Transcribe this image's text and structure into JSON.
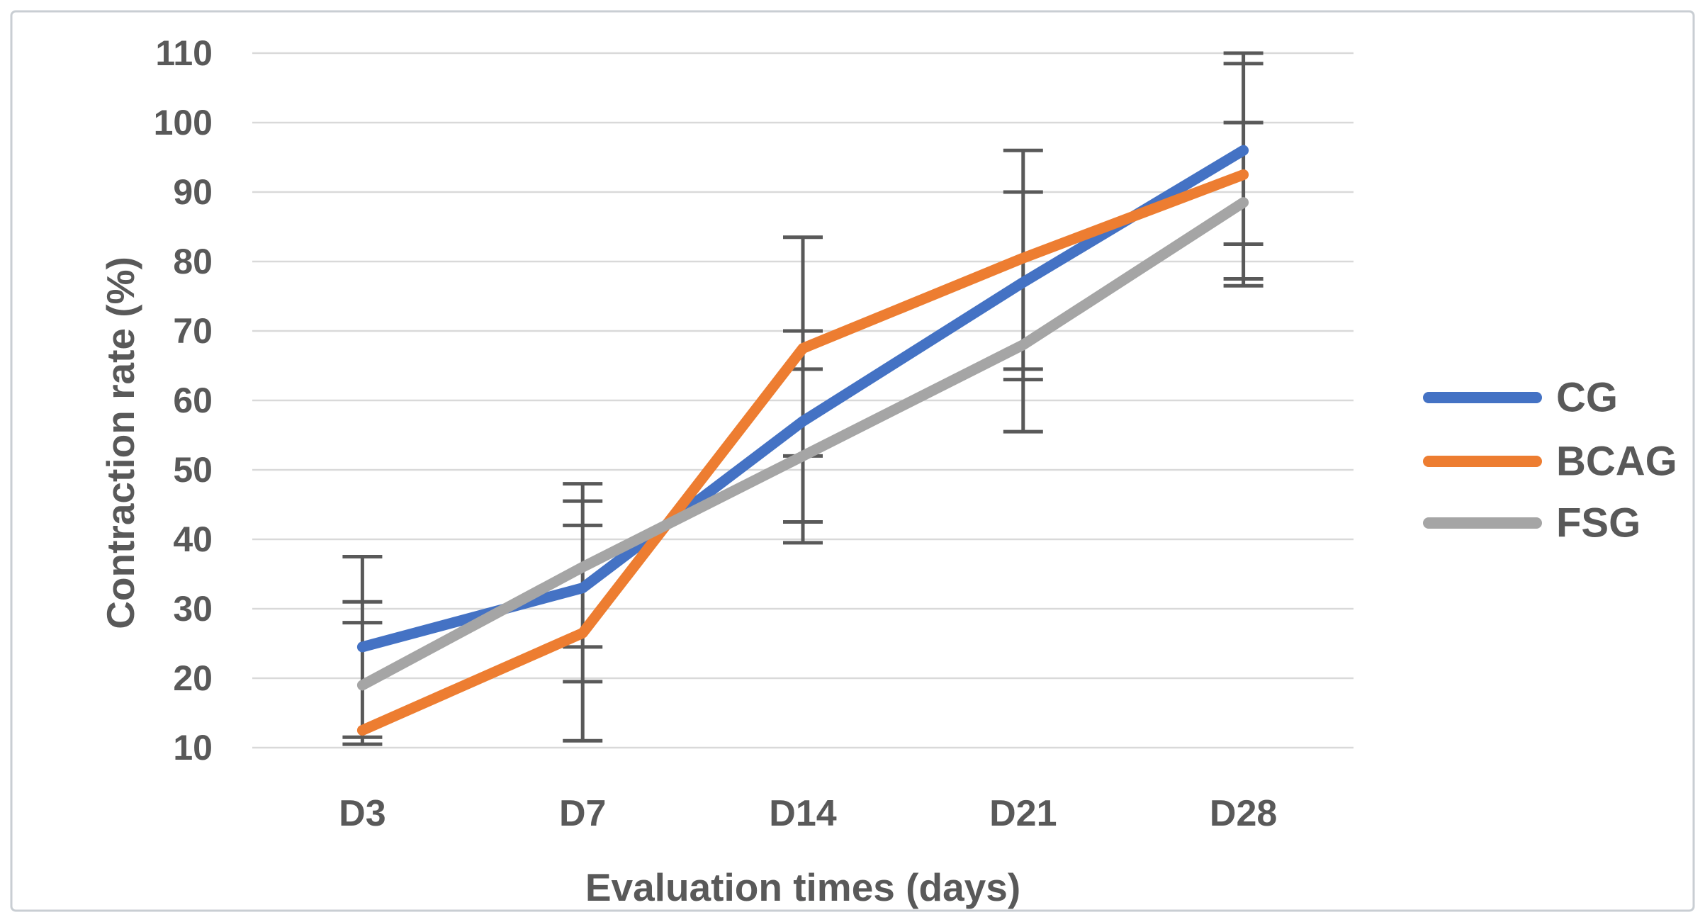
{
  "chart_data": {
    "type": "line",
    "title": "",
    "xlabel": "Evaluation times (days)",
    "ylabel": "Contraction rate (%)",
    "categories": [
      "D3",
      "D7",
      "D14",
      "D21",
      "D28"
    ],
    "y_ticks": [
      110,
      100,
      90,
      80,
      70,
      60,
      50,
      40,
      30,
      20,
      10
    ],
    "ylim": [
      10,
      110
    ],
    "grid": "horizontal",
    "legend_position": "right",
    "series": [
      {
        "name": "CG",
        "color": "#4472C4",
        "values": [
          24.5,
          33,
          57,
          77,
          96
        ]
      },
      {
        "name": "BCAG",
        "color": "#ED7D31",
        "values": [
          12.5,
          26.5,
          67.5,
          80.5,
          92.5
        ]
      },
      {
        "name": "FSG",
        "color": "#A5A5A5",
        "values": [
          19,
          36,
          52,
          68,
          88.5
        ]
      }
    ],
    "error_bars": {
      "color": "#595959",
      "points": [
        {
          "category": "D3",
          "low": 10.5,
          "high": 37.5,
          "caps": [
            37.5,
            31,
            28,
            11.5,
            10.5
          ]
        },
        {
          "category": "D7",
          "low": 11,
          "high": 48,
          "caps": [
            48,
            45.5,
            42,
            24.5,
            19.5,
            11
          ]
        },
        {
          "category": "D14",
          "low": 39.5,
          "high": 83.5,
          "caps": [
            83.5,
            70,
            64.5,
            52,
            42.5,
            39.5
          ]
        },
        {
          "category": "D21",
          "low": 55.5,
          "high": 96,
          "caps": [
            96,
            90,
            64.5,
            63,
            55.5
          ]
        },
        {
          "category": "D28",
          "low": 76.5,
          "high": 110,
          "caps": [
            110,
            108.5,
            100,
            82.5,
            77.5,
            76.5
          ]
        }
      ]
    },
    "style": {
      "grid_color": "#D9D9D9",
      "text_color": "#595959",
      "border_color": "#C9CED3",
      "background": "#FFFFFF"
    }
  }
}
